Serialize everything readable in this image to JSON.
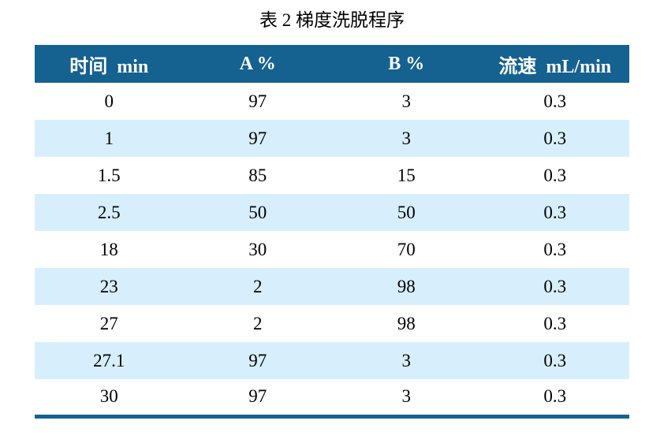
{
  "title": "表 2  梯度洗脱程序",
  "table": {
    "columns": [
      "时间  min",
      "A %",
      "B %",
      "流速  mL/min"
    ],
    "rows": [
      [
        "0",
        "97",
        "3",
        "0.3"
      ],
      [
        "1",
        "97",
        "3",
        "0.3"
      ],
      [
        "1.5",
        "85",
        "15",
        "0.3"
      ],
      [
        "2.5",
        "50",
        "50",
        "0.3"
      ],
      [
        "18",
        "30",
        "70",
        "0.3"
      ],
      [
        "23",
        "2",
        "98",
        "0.3"
      ],
      [
        "27",
        "2",
        "98",
        "0.3"
      ],
      [
        "27.1",
        "97",
        "3",
        "0.3"
      ],
      [
        "30",
        "97",
        "3",
        "0.3"
      ]
    ]
  },
  "colors": {
    "header_bg": "#15618f",
    "header_text": "#ffffff",
    "row_bg": "#ffffff",
    "row_alt_bg": "#d7effc",
    "bottom_rule": "#15618f",
    "text": "#000000"
  }
}
